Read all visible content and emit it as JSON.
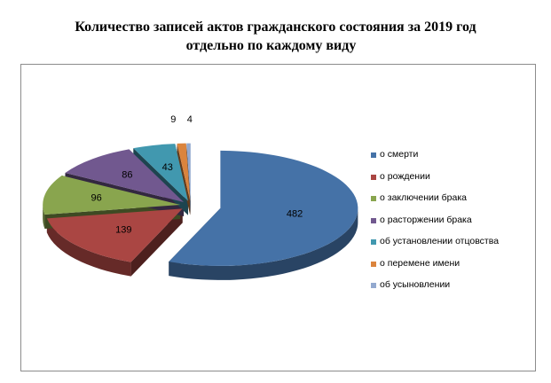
{
  "chart_data": {
    "type": "pie",
    "title_line1": "Количество записей актов гражданского состояния за 2019 год",
    "title_line2": "отдельно по каждому виду",
    "series": [
      {
        "name": "о смерти",
        "value": 482,
        "color": "#4572a7"
      },
      {
        "name": "о рождении",
        "value": 139,
        "color": "#aa4643"
      },
      {
        "name": "о заключении брака",
        "value": 96,
        "color": "#89a54e"
      },
      {
        "name": "о расторжении брака",
        "value": 86,
        "color": "#71588f"
      },
      {
        "name": "об установлении отцовства",
        "value": 43,
        "color": "#4198af"
      },
      {
        "name": "о перемене имени",
        "value": 9,
        "color": "#db843d"
      },
      {
        "name": "об усыновлении",
        "value": 4,
        "color": "#93a9cf"
      }
    ],
    "legend_position": "right",
    "exploded": true,
    "three_d": true
  }
}
